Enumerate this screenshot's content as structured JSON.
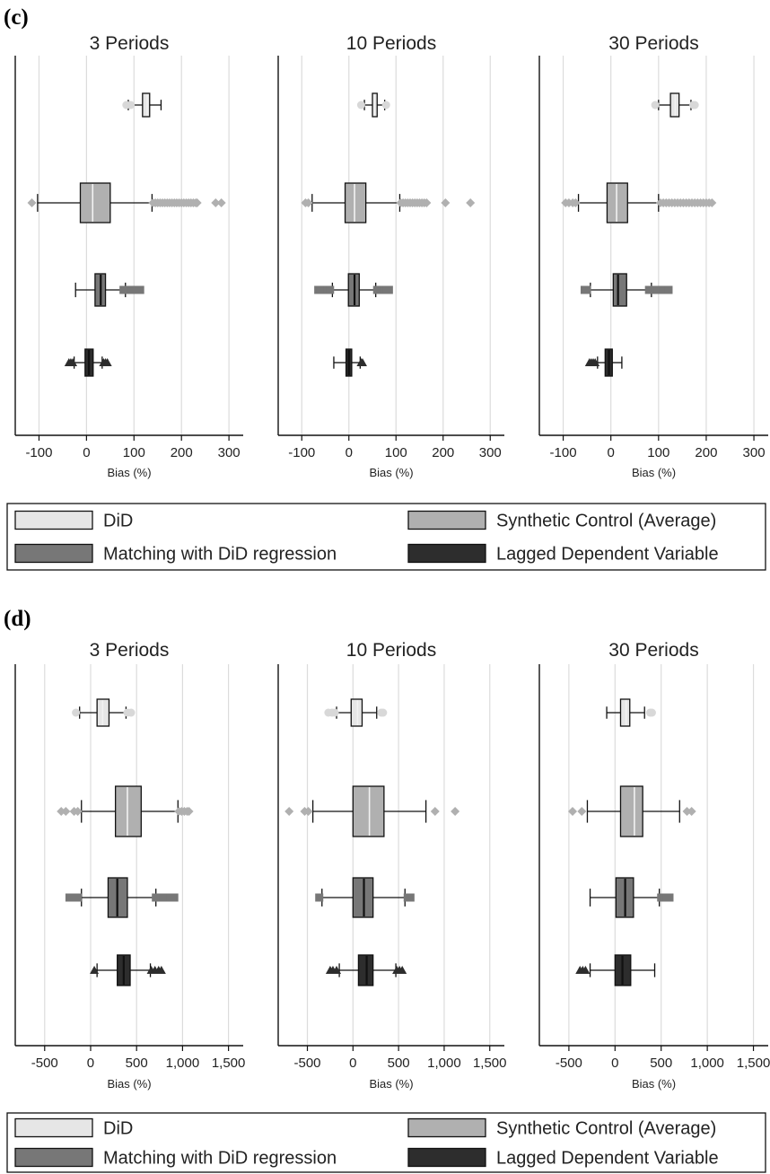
{
  "chart_data": [
    {
      "type": "boxplot",
      "panel_label": "(c)",
      "xlabel": "Bias (%)",
      "xlim": [
        -150,
        330
      ],
      "xticks": [
        -100,
        0,
        100,
        200,
        300
      ],
      "tick_labels": [
        "-100",
        "0",
        "100",
        "200",
        "300"
      ],
      "grid": true,
      "legend_placement": "bottom",
      "subplots": [
        {
          "title": "3 Periods",
          "series": [
            {
              "name": "DiD",
              "color": "#e6e6e6",
              "q1": 118,
              "median": 128,
              "q3": 133,
              "whisker_low": 88,
              "whisker_high": 157,
              "outliers": [
                84,
                93
              ]
            },
            {
              "name": "Synthetic Control (Average)",
              "color": "#b0b0b0",
              "q1": -13,
              "median": 13,
              "q3": 50,
              "whisker_low": -103,
              "whisker_high": 138,
              "outliers": [
                -115,
                140,
                145,
                150,
                155,
                160,
                165,
                170,
                175,
                180,
                185,
                190,
                195,
                200,
                205,
                210,
                215,
                220,
                225,
                230,
                233,
                272,
                284
              ]
            },
            {
              "name": "Matching with DiD regression",
              "color": "#777777",
              "q1": 18,
              "median": 30,
              "q3": 40,
              "whisker_low": -23,
              "whisker_high": 82,
              "outliers": [
                78,
                84,
                90,
                96,
                102,
                108,
                113
              ]
            },
            {
              "name": "Lagged Dependent Variable",
              "color": "#2d2d2d",
              "q1": -3,
              "median": 5,
              "q3": 14,
              "whisker_low": -26,
              "whisker_high": 33,
              "outliers": [
                -37,
                -33,
                -29,
                36,
                40,
                44
              ]
            }
          ]
        },
        {
          "title": "10 Periods",
          "series": [
            {
              "name": "DiD",
              "color": "#e6e6e6",
              "q1": 50,
              "median": 54,
              "q3": 60,
              "whisker_low": 33,
              "whisker_high": 76,
              "outliers": [
                26,
                79
              ]
            },
            {
              "name": "Synthetic Control (Average)",
              "color": "#b0b0b0",
              "q1": -8,
              "median": 12,
              "q3": 36,
              "whisker_low": -78,
              "whisker_high": 108,
              "outliers": [
                -92,
                -86,
                110,
                115,
                120,
                125,
                130,
                135,
                140,
                145,
                150,
                155,
                160,
                165,
                205,
                258
              ]
            },
            {
              "name": "Matching with DiD regression",
              "color": "#777777",
              "q1": -1,
              "median": 12,
              "q3": 22,
              "whisker_low": -35,
              "whisker_high": 57,
              "outliers": [
                -65,
                -60,
                -55,
                -50,
                -45,
                -40,
                60,
                65,
                70,
                75,
                80,
                85
              ]
            },
            {
              "name": "Lagged Dependent Variable",
              "color": "#2d2d2d",
              "q1": -6,
              "median": 0,
              "q3": 6,
              "whisker_low": -32,
              "whisker_high": 24,
              "outliers": [
                26,
                29
              ]
            }
          ]
        },
        {
          "title": "30 Periods",
          "series": [
            {
              "name": "DiD",
              "color": "#e6e6e6",
              "q1": 125,
              "median": 135,
              "q3": 143,
              "whisker_low": 100,
              "whisker_high": 168,
              "outliers": [
                93,
                173,
                176
              ]
            },
            {
              "name": "Synthetic Control (Average)",
              "color": "#b0b0b0",
              "q1": -8,
              "median": 12,
              "q3": 35,
              "whisker_low": -68,
              "whisker_high": 100,
              "outliers": [
                -95,
                -88,
                -80,
                -74,
                104,
                110,
                116,
                122,
                128,
                134,
                140,
                146,
                152,
                158,
                164,
                170,
                176,
                182,
                188,
                194,
                200,
                206,
                212
              ]
            },
            {
              "name": "Matching with DiD regression",
              "color": "#777777",
              "q1": 5,
              "median": 15,
              "q3": 33,
              "whisker_low": -43,
              "whisker_high": 85,
              "outliers": [
                -55,
                -50,
                80,
                86,
                92,
                98,
                104,
                110,
                116,
                121
              ]
            },
            {
              "name": "Lagged Dependent Variable",
              "color": "#2d2d2d",
              "q1": -12,
              "median": -4,
              "q3": 3,
              "whisker_low": -28,
              "whisker_high": 23,
              "outliers": [
                -45,
                -41,
                -37,
                -33
              ]
            }
          ]
        }
      ]
    },
    {
      "type": "boxplot",
      "panel_label": "(d)",
      "xlabel": "Bias (%)",
      "xlim": [
        -820,
        1660
      ],
      "xticks": [
        -500,
        0,
        500,
        1000,
        1500
      ],
      "tick_labels": [
        "-500",
        "0",
        "500",
        "1,000",
        "1,500"
      ],
      "grid": true,
      "legend_placement": "bottom",
      "subplots": [
        {
          "title": "3 Periods",
          "series": [
            {
              "name": "DiD",
              "color": "#e6e6e6",
              "q1": 70,
              "median": 130,
              "q3": 200,
              "whisker_low": -120,
              "whisker_high": 385,
              "outliers": [
                -160,
                400,
                440
              ]
            },
            {
              "name": "Synthetic Control (Average)",
              "color": "#b0b0b0",
              "q1": 270,
              "median": 400,
              "q3": 550,
              "whisker_low": -100,
              "whisker_high": 950,
              "outliers": [
                -320,
                -270,
                -180,
                -140,
                960,
                990,
                1020,
                1050,
                1070
              ]
            },
            {
              "name": "Matching with DiD regression",
              "color": "#777777",
              "q1": 190,
              "median": 290,
              "q3": 400,
              "whisker_low": -100,
              "whisker_high": 710,
              "outliers": [
                -230,
                -200,
                -170,
                -140,
                710,
                750,
                790,
                830,
                870,
                910
              ]
            },
            {
              "name": "Lagged Dependent Variable",
              "color": "#2d2d2d",
              "q1": 290,
              "median": 360,
              "q3": 430,
              "whisker_low": 70,
              "whisker_high": 650,
              "outliers": [
                40,
                660,
                700,
                740,
                770
              ]
            }
          ]
        },
        {
          "title": "10 Periods",
          "series": [
            {
              "name": "DiD",
              "color": "#e6e6e6",
              "q1": -20,
              "median": 50,
              "q3": 100,
              "whisker_low": -180,
              "whisker_high": 260,
              "outliers": [
                -270,
                -230,
                -200,
                310,
                330
              ]
            },
            {
              "name": "Synthetic Control (Average)",
              "color": "#b0b0b0",
              "q1": 0,
              "median": 180,
              "q3": 340,
              "whisker_low": -440,
              "whisker_high": 800,
              "outliers": [
                -700,
                -530,
                -490,
                900,
                1120
              ]
            },
            {
              "name": "Matching with DiD regression",
              "color": "#777777",
              "q1": 0,
              "median": 120,
              "q3": 220,
              "whisker_low": -340,
              "whisker_high": 570,
              "outliers": [
                -370,
                600,
                630
              ]
            },
            {
              "name": "Lagged Dependent Variable",
              "color": "#2d2d2d",
              "q1": 60,
              "median": 150,
              "q3": 220,
              "whisker_low": -150,
              "whisker_high": 470,
              "outliers": [
                -250,
                -220,
                -180,
                480,
                510,
                540
              ]
            }
          ]
        },
        {
          "title": "30 Periods",
          "series": [
            {
              "name": "DiD",
              "color": "#e6e6e6",
              "q1": 60,
              "median": 120,
              "q3": 160,
              "whisker_low": -90,
              "whisker_high": 320,
              "outliers": [
                380,
                400
              ]
            },
            {
              "name": "Synthetic Control (Average)",
              "color": "#b0b0b0",
              "q1": 60,
              "median": 210,
              "q3": 300,
              "whisker_low": -300,
              "whisker_high": 700,
              "outliers": [
                -460,
                -360,
                780,
                830
              ]
            },
            {
              "name": "Matching with DiD regression",
              "color": "#777777",
              "q1": 10,
              "median": 110,
              "q3": 200,
              "whisker_low": -270,
              "whisker_high": 480,
              "outliers": [
                500,
                530,
                560,
                590
              ]
            },
            {
              "name": "Lagged Dependent Variable",
              "color": "#2d2d2d",
              "q1": 0,
              "median": 80,
              "q3": 170,
              "whisker_low": -270,
              "whisker_high": 430,
              "outliers": [
                -380,
                -350,
                -320
              ]
            }
          ]
        }
      ]
    }
  ],
  "legend": [
    {
      "label": "DiD",
      "color": "#e6e6e6"
    },
    {
      "label": "Synthetic Control (Average)",
      "color": "#b0b0b0"
    },
    {
      "label": "Matching with DiD regression",
      "color": "#777777"
    },
    {
      "label": "Lagged Dependent Variable",
      "color": "#2d2d2d"
    }
  ]
}
